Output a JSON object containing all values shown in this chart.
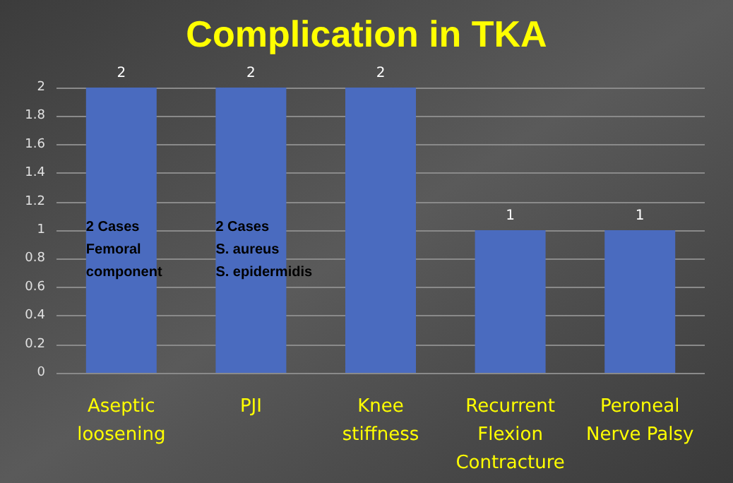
{
  "chart_data": {
    "type": "bar",
    "title": "Complication in TKA",
    "categories": [
      "Aseptic\nloosening",
      "PJI",
      "Knee\nstiffness",
      "Recurrent\nFlexion\nContracture",
      "Peroneal\nNerve Palsy"
    ],
    "values": [
      2,
      2,
      2,
      1,
      1
    ],
    "color": "#4a6bbf",
    "ylim": [
      0,
      2
    ],
    "yticks": [
      0,
      0.2,
      0.4,
      0.6,
      0.8,
      1,
      1.2,
      1.4,
      1.6,
      1.8,
      2
    ],
    "grid": "y",
    "data_labels": true,
    "annotations": [
      "2 Cases\nFemoral\ncomponent",
      "2 Cases\nS. aureus\nS. epidermidis"
    ]
  }
}
